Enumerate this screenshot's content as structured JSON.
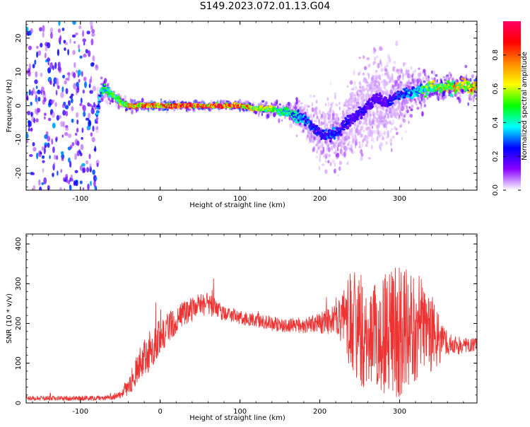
{
  "figure_title": "S149.2023.072.01.13.G04",
  "chart_data": [
    {
      "type": "heatmap",
      "xlabel": "Height of straight line (km)",
      "ylabel": "Frequency (Hz)",
      "xlim": [
        -168,
        397
      ],
      "ylim": [
        -25,
        25
      ],
      "xticks": [
        -100,
        0,
        100,
        200,
        300
      ],
      "yticks": [
        -20,
        -10,
        0,
        10,
        20
      ],
      "colorbar": {
        "label": "Normalized spectral amplitude",
        "range": [
          0.0,
          1.0
        ],
        "ticks": [
          0.0,
          0.2,
          0.4,
          0.6,
          0.8
        ],
        "tick_labels": [
          "0.0",
          "0.2",
          "0.4",
          "0.6",
          "0.8"
        ],
        "colormap": [
          "#ffffff",
          "#8800ff",
          "#0000ff",
          "#00ffff",
          "#00ff00",
          "#ffff00",
          "#ff8800",
          "#ff0000",
          "#ff0066"
        ]
      },
      "ridge": {
        "x": [
          -85,
          -80,
          -75,
          -70,
          -60,
          -50,
          -40,
          -20,
          0,
          20,
          40,
          60,
          80,
          100,
          120,
          140,
          160,
          170,
          180,
          190,
          200,
          210,
          220,
          230,
          240,
          250,
          260,
          270,
          280,
          290,
          300,
          310,
          320,
          330,
          340,
          350,
          360,
          370,
          380,
          390,
          397
        ],
        "freq": [
          -6,
          -3,
          4,
          5,
          3,
          1,
          0,
          0,
          0,
          0,
          0,
          0,
          0,
          0,
          -1,
          -1,
          -2,
          -3,
          -4,
          -6,
          -8,
          -9,
          -8,
          -6,
          -4,
          -2,
          0,
          2,
          1,
          2,
          3,
          4,
          4,
          5,
          6,
          5,
          6,
          5,
          6,
          5,
          6
        ],
        "amp": [
          0.3,
          0.35,
          0.45,
          0.5,
          0.55,
          0.6,
          0.75,
          0.85,
          0.9,
          0.95,
          0.95,
          0.9,
          0.95,
          0.9,
          0.7,
          0.6,
          0.5,
          0.4,
          0.35,
          0.3,
          0.25,
          0.3,
          0.3,
          0.25,
          0.2,
          0.25,
          0.2,
          0.2,
          0.2,
          0.25,
          0.3,
          0.35,
          0.4,
          0.55,
          0.6,
          0.7,
          0.65,
          0.75,
          0.7,
          0.8,
          0.8
        ],
        "spread": [
          4,
          4,
          3,
          3,
          1.5,
          1.5,
          1.2,
          1,
          1,
          1,
          1,
          1,
          1,
          1,
          1.2,
          1.5,
          2,
          3,
          4,
          5,
          6,
          7,
          8,
          8,
          9,
          9,
          10,
          11,
          10,
          9,
          8,
          6,
          5,
          4,
          3,
          3,
          3,
          3,
          3,
          3,
          3
        ]
      },
      "noise_region_x": [
        -168,
        -78
      ]
    },
    {
      "type": "line",
      "xlabel": "Height of straight line (km)",
      "ylabel": "SNR (10 * v/v)",
      "xlim": [
        -168,
        397
      ],
      "ylim": [
        0,
        425
      ],
      "xticks": [
        -100,
        0,
        100,
        200,
        300
      ],
      "yticks": [
        0,
        100,
        200,
        300,
        400
      ],
      "color": "#ee3333",
      "series": [
        {
          "x": [
            -168,
            -120,
            -80,
            -60,
            -50,
            -40,
            -30,
            -20,
            -10,
            0,
            10,
            20,
            30,
            40,
            50,
            60,
            70,
            80,
            100,
            120,
            140,
            160,
            180,
            200,
            220,
            230,
            240,
            250,
            260,
            270,
            280,
            290,
            300,
            310,
            320,
            330,
            340,
            350,
            360,
            370,
            380,
            397
          ],
          "mean": [
            12,
            12,
            12,
            14,
            20,
            40,
            80,
            110,
            140,
            170,
            190,
            210,
            225,
            235,
            245,
            248,
            240,
            225,
            215,
            210,
            200,
            195,
            195,
            200,
            210,
            215,
            195,
            185,
            180,
            175,
            175,
            175,
            175,
            180,
            185,
            185,
            175,
            160,
            150,
            145,
            145,
            145
          ],
          "amp": [
            6,
            6,
            6,
            6,
            8,
            20,
            40,
            50,
            50,
            45,
            40,
            35,
            30,
            30,
            30,
            30,
            25,
            20,
            18,
            18,
            18,
            18,
            20,
            25,
            40,
            70,
            140,
            150,
            150,
            150,
            150,
            160,
            170,
            160,
            150,
            130,
            100,
            60,
            30,
            25,
            20,
            18
          ]
        }
      ]
    }
  ]
}
